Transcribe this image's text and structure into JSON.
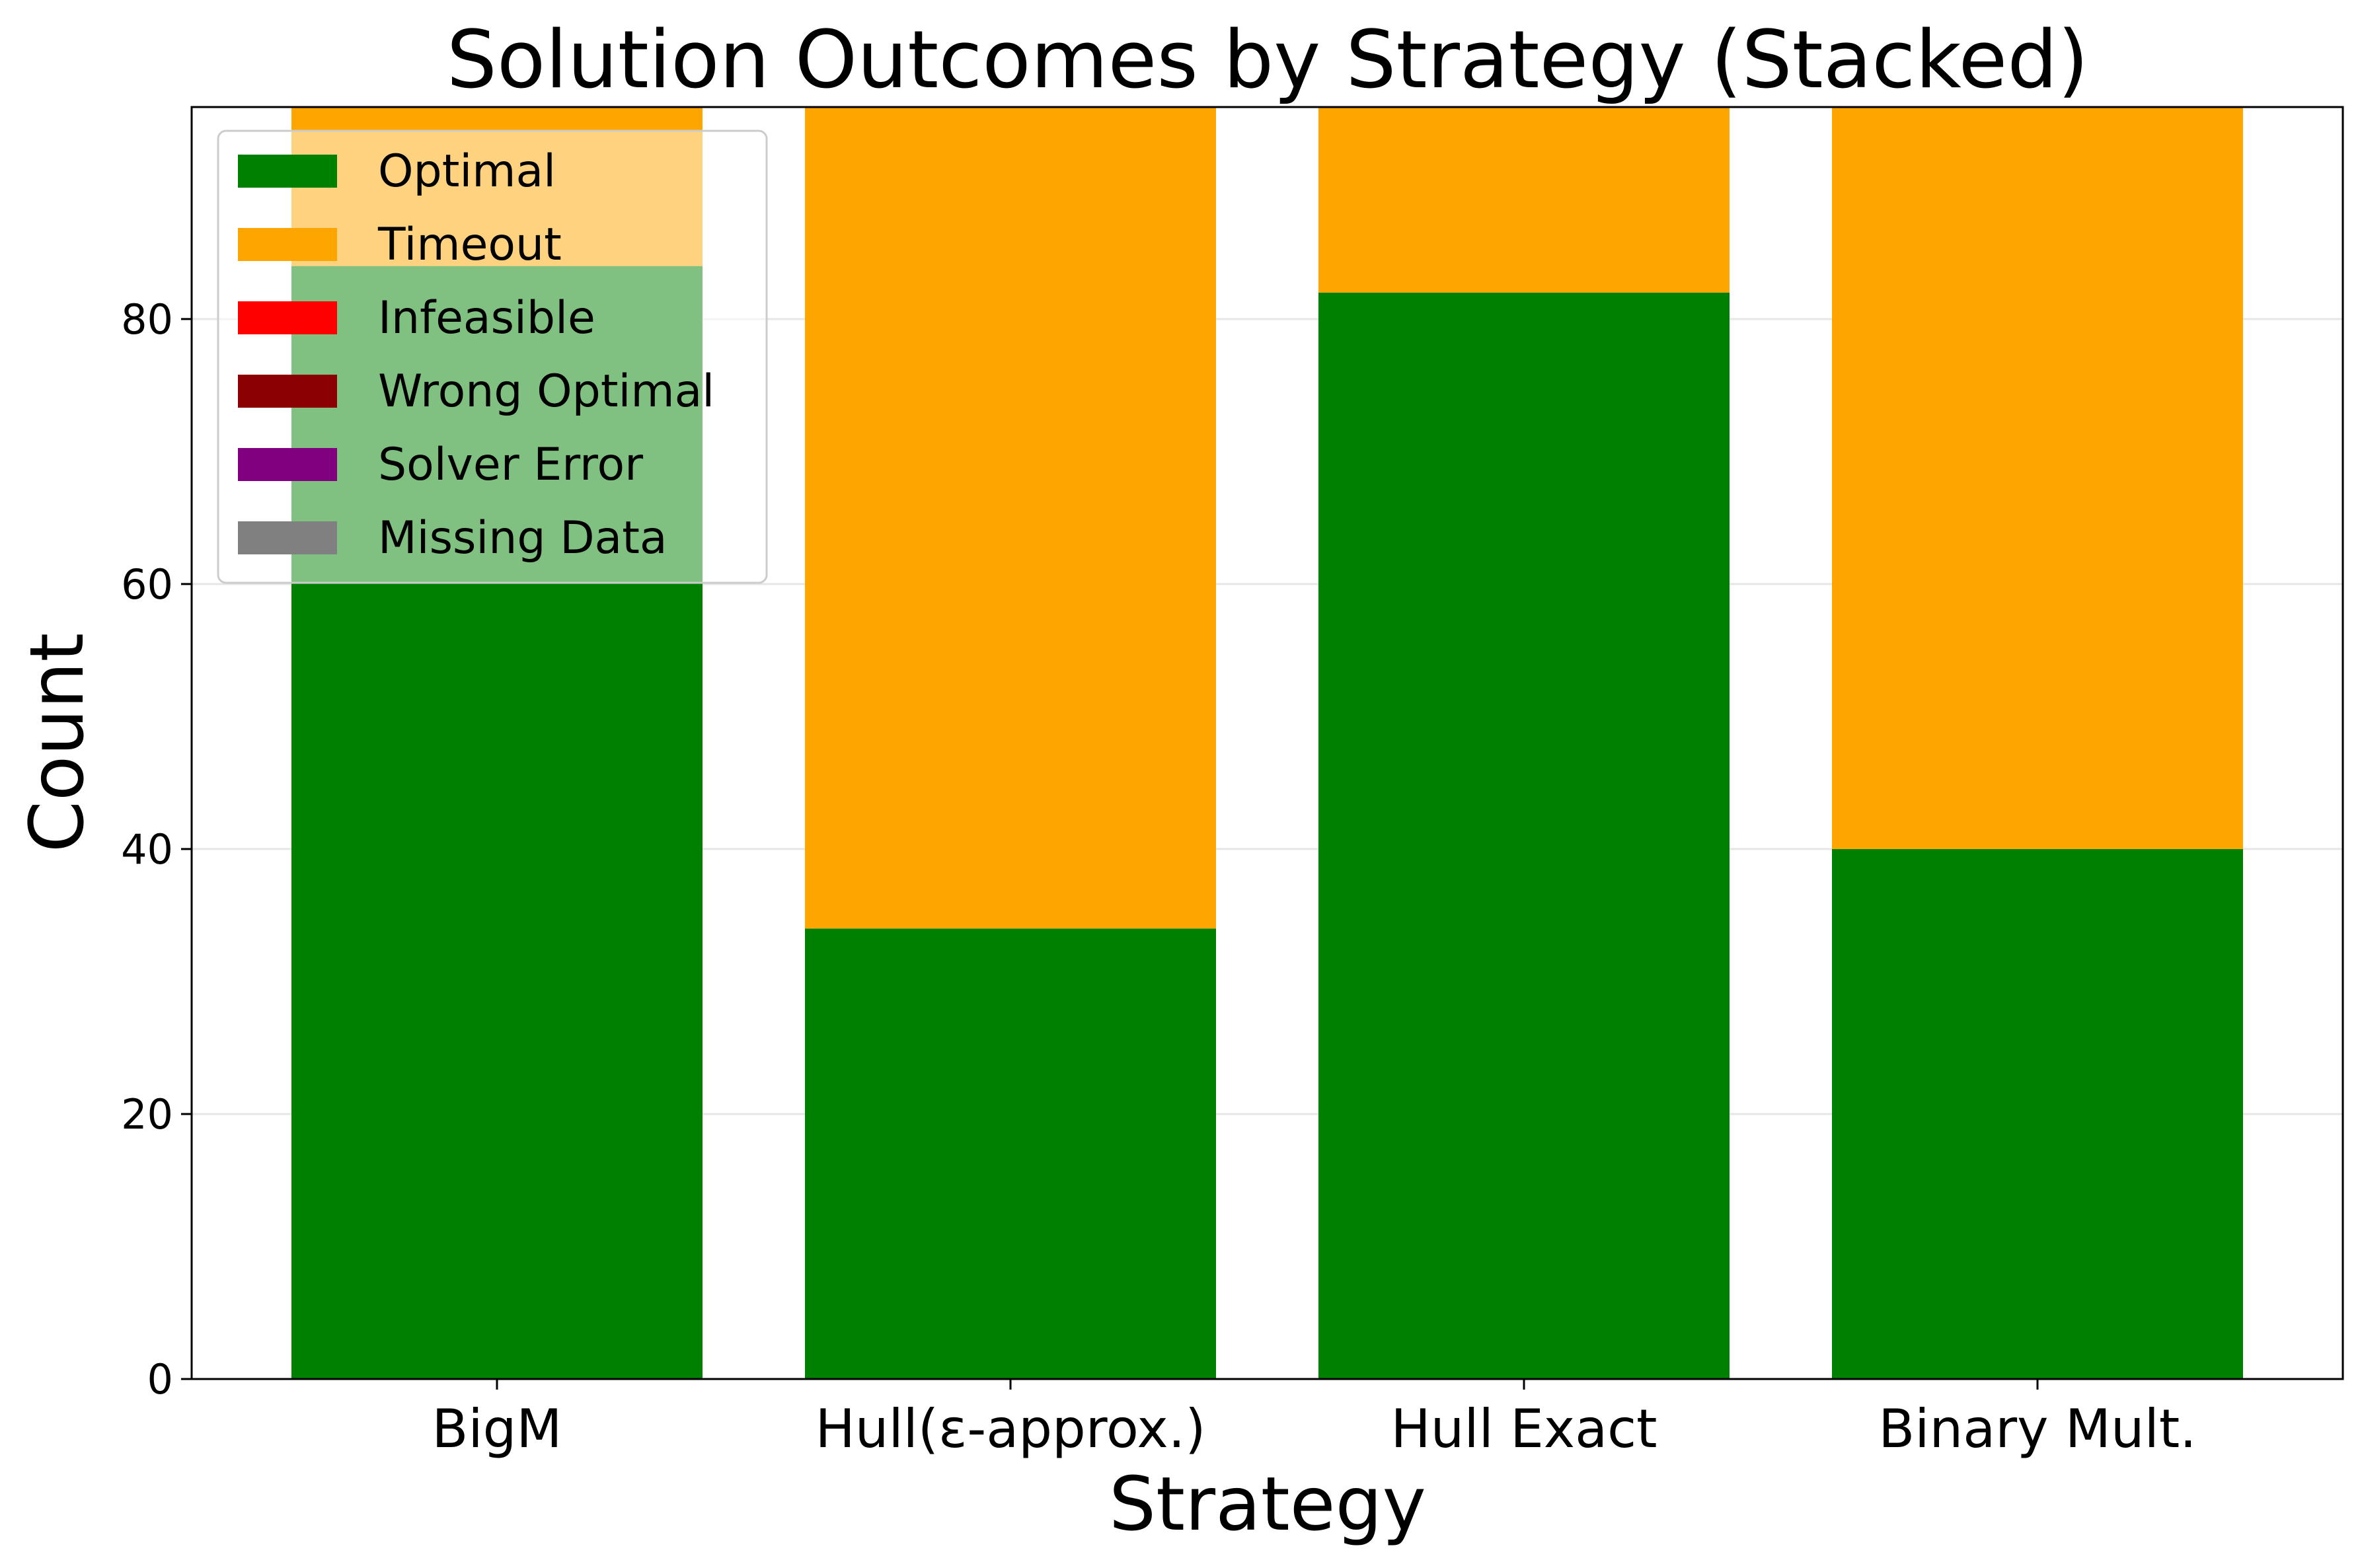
{
  "chart_data": {
    "type": "bar",
    "stacked": true,
    "title": "Solution Outcomes by Strategy (Stacked)",
    "xlabel": "Strategy",
    "ylabel": "Count",
    "categories": [
      "BigM",
      "Hull(ε-approx.)",
      "Hull Exact",
      "Binary Mult."
    ],
    "ylim": [
      0,
      96
    ],
    "yticks": [
      0,
      20,
      40,
      60,
      80
    ],
    "grid": "horizontal",
    "legend_position": "top-left",
    "series": [
      {
        "name": "Optimal",
        "color": "#008000",
        "values": [
          84,
          34,
          82,
          40
        ]
      },
      {
        "name": "Timeout",
        "color": "#ffa500",
        "values": [
          12,
          62,
          14,
          56
        ]
      },
      {
        "name": "Infeasible",
        "color": "#ff0000",
        "values": [
          0,
          0,
          0,
          0
        ]
      },
      {
        "name": "Wrong Optimal",
        "color": "#8b0000",
        "values": [
          0,
          0,
          0,
          0
        ]
      },
      {
        "name": "Solver Error",
        "color": "#800080",
        "values": [
          0,
          0,
          0,
          0
        ]
      },
      {
        "name": "Missing Data",
        "color": "#808080",
        "values": [
          0,
          0,
          0,
          0
        ]
      }
    ]
  }
}
